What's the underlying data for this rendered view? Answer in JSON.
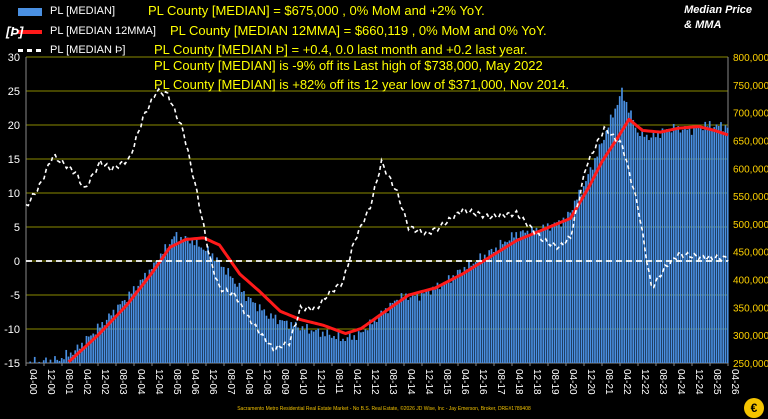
{
  "header": {
    "unit_label": "[Þ]",
    "title_line1": "Median Price",
    "title_line2": "& MMA"
  },
  "legend": [
    {
      "name": "PL [MEDIAN]",
      "note": "PL County [MEDIAN] = $675,000 , 0% MoM and +2% YoY.",
      "color": "#4a90e2",
      "style": "bar"
    },
    {
      "name": "PL [MEDIAN 12MMA]",
      "note": "PL County [MEDIAN 12MMA] = $660,119 , 0% MoM and 0% YoY.",
      "color": "#ff1a1a",
      "style": "line"
    },
    {
      "name": "PL [MEDIAN Þ]",
      "note": "PL County [MEDIAN Þ] = +0.4, 0.0 last month and +0.2 last year.",
      "color": "#ffffff",
      "style": "dash"
    }
  ],
  "notes": [
    "PL County [MEDIAN] is -9% off its Last high of $738,000, May 2022",
    "PL County [MEDIAN] is +82% off its 12 year low of $371,000, Nov 2014."
  ],
  "footer": "Sacramento Metro Residential Real Estate Market - No B.S. Real Estate, ©2026 JD Wise, Inc - Jay Emerson, Broker, DRE#1789408",
  "badge": "€",
  "chart_data": {
    "type": "bar",
    "x_tick_labels": [
      "04-00",
      "12-00",
      "08-01",
      "04-02",
      "12-02",
      "08-03",
      "04-04",
      "12-04",
      "08-05",
      "04-06",
      "12-06",
      "08-07",
      "04-08",
      "12-08",
      "08-09",
      "04-10",
      "12-10",
      "08-11",
      "04-12",
      "12-12",
      "08-13",
      "04-14",
      "12-14",
      "08-15",
      "04-16",
      "12-16",
      "08-17",
      "04-18",
      "12-18",
      "08-19",
      "04-20",
      "12-20",
      "08-21",
      "04-22",
      "12-22",
      "08-23",
      "04-24",
      "12-24",
      "08-25",
      "04-26"
    ],
    "x_range_months": [
      "2000-04",
      "2026-04"
    ],
    "left_axis": {
      "min": -15,
      "max": 30,
      "step": 5,
      "ticks": [
        -15,
        -10,
        -5,
        0,
        5,
        10,
        15,
        20,
        25,
        30
      ]
    },
    "right_axis": {
      "min": 250000,
      "max": 800000,
      "step": 50000,
      "ticks": [
        "250,000",
        "300,000",
        "350,000",
        "400,000",
        "450,000",
        "500,000",
        "550,000",
        "600,000",
        "650,000",
        "700,000",
        "750,000",
        "800,000"
      ]
    },
    "zero_line": 0,
    "series": [
      {
        "name": "PL [MEDIAN]",
        "kind": "bar",
        "axis": "right",
        "color": "#4a90e2",
        "keypoints": [
          [
            "2000-04",
            250000
          ],
          [
            "2001-06",
            255000
          ],
          [
            "2002-02",
            272000
          ],
          [
            "2003-02",
            320000
          ],
          [
            "2004-02",
            372000
          ],
          [
            "2004-12",
            420000
          ],
          [
            "2005-10",
            478000
          ],
          [
            "2006-06",
            470000
          ],
          [
            "2007-03",
            445000
          ],
          [
            "2007-10",
            412000
          ],
          [
            "2008-06",
            370000
          ],
          [
            "2009-04",
            335000
          ],
          [
            "2009-12",
            322000
          ],
          [
            "2010-08",
            312000
          ],
          [
            "2011-06",
            302000
          ],
          [
            "2012-01",
            293000
          ],
          [
            "2012-08",
            300000
          ],
          [
            "2013-04",
            330000
          ],
          [
            "2014-02",
            368000
          ],
          [
            "2014-11",
            372000
          ],
          [
            "2015-08",
            388000
          ],
          [
            "2016-06",
            418000
          ],
          [
            "2017-06",
            448000
          ],
          [
            "2018-06",
            482000
          ],
          [
            "2019-06",
            492000
          ],
          [
            "2020-04",
            508000
          ],
          [
            "2020-12",
            568000
          ],
          [
            "2021-06",
            625000
          ],
          [
            "2022-05",
            738000
          ],
          [
            "2022-12",
            665000
          ],
          [
            "2023-06",
            655000
          ],
          [
            "2024-02",
            672000
          ],
          [
            "2024-12",
            670000
          ],
          [
            "2025-06",
            678000
          ],
          [
            "2026-04",
            675000
          ]
        ]
      },
      {
        "name": "PL [MEDIAN 12MMA]",
        "kind": "line",
        "axis": "right",
        "color": "#ff1a1a",
        "keypoints": [
          [
            "2001-11",
            252000
          ],
          [
            "2002-12",
            300000
          ],
          [
            "2004-01",
            355000
          ],
          [
            "2004-12",
            412000
          ],
          [
            "2005-08",
            458000
          ],
          [
            "2006-03",
            472000
          ],
          [
            "2006-11",
            475000
          ],
          [
            "2007-06",
            462000
          ],
          [
            "2008-03",
            410000
          ],
          [
            "2008-12",
            378000
          ],
          [
            "2009-09",
            343000
          ],
          [
            "2010-06",
            328000
          ],
          [
            "2011-04",
            318000
          ],
          [
            "2012-02",
            303000
          ],
          [
            "2012-09",
            312000
          ],
          [
            "2013-06",
            338000
          ],
          [
            "2014-06",
            372000
          ],
          [
            "2015-06",
            385000
          ],
          [
            "2016-06",
            410000
          ],
          [
            "2017-06",
            440000
          ],
          [
            "2018-06",
            470000
          ],
          [
            "2019-06",
            490000
          ],
          [
            "2020-06",
            510000
          ],
          [
            "2021-02",
            565000
          ],
          [
            "2021-08",
            612000
          ],
          [
            "2022-03",
            655000
          ],
          [
            "2022-08",
            688000
          ],
          [
            "2023-02",
            668000
          ],
          [
            "2023-10",
            665000
          ],
          [
            "2024-06",
            672000
          ],
          [
            "2025-03",
            675000
          ],
          [
            "2025-10",
            668000
          ],
          [
            "2026-04",
            660000
          ]
        ]
      },
      {
        "name": "PL [MEDIAN Þ]",
        "kind": "line",
        "axis": "left",
        "color": "#ffffff",
        "keypoints": [
          [
            "2000-04",
            8
          ],
          [
            "2000-10",
            11
          ],
          [
            "2001-04",
            15.5
          ],
          [
            "2002-02",
            13
          ],
          [
            "2002-06",
            10.5
          ],
          [
            "2003-01",
            14.5
          ],
          [
            "2003-06",
            13.5
          ],
          [
            "2004-02",
            15
          ],
          [
            "2004-08",
            21
          ],
          [
            "2005-02",
            25
          ],
          [
            "2005-07",
            24.5
          ],
          [
            "2006-02",
            19
          ],
          [
            "2006-08",
            10
          ],
          [
            "2007-02",
            0
          ],
          [
            "2007-06",
            -4
          ],
          [
            "2008-01",
            -5
          ],
          [
            "2008-06",
            -8
          ],
          [
            "2009-01",
            -11
          ],
          [
            "2009-06",
            -13
          ],
          [
            "2010-01",
            -12
          ],
          [
            "2010-06",
            -7
          ],
          [
            "2011-01",
            -7
          ],
          [
            "2011-06",
            -5
          ],
          [
            "2012-01",
            -3
          ],
          [
            "2012-06",
            3
          ],
          [
            "2013-01",
            8
          ],
          [
            "2013-06",
            14.5
          ],
          [
            "2014-01",
            10
          ],
          [
            "2014-06",
            5
          ],
          [
            "2015-02",
            4
          ],
          [
            "2015-08",
            5
          ],
          [
            "2016-06",
            7.5
          ],
          [
            "2017-06",
            6.5
          ],
          [
            "2018-06",
            7
          ],
          [
            "2019-06",
            3
          ],
          [
            "2020-01",
            2
          ],
          [
            "2020-06",
            3.5
          ],
          [
            "2021-01",
            14
          ],
          [
            "2021-09",
            19.5
          ],
          [
            "2022-05",
            17
          ],
          [
            "2022-12",
            8
          ],
          [
            "2023-06",
            -4
          ],
          [
            "2023-12",
            -1
          ],
          [
            "2024-06",
            1
          ],
          [
            "2025-06",
            0.5
          ],
          [
            "2026-04",
            0.4
          ]
        ]
      }
    ],
    "xlabel": "",
    "ylabel": "[Þ]",
    "grid": true,
    "legend_position": "top-left"
  }
}
